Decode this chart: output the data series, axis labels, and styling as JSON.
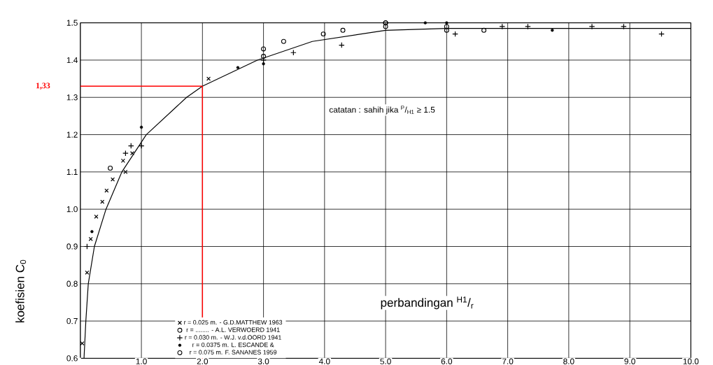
{
  "chart_data": {
    "type": "scatter",
    "xlabel": "perbandingan $^{H1}$/$_{r}$",
    "ylabel": "koefisien C$_{0}$",
    "xlim": [
      0,
      10
    ],
    "ylim": [
      0.6,
      1.5
    ],
    "xticks": [
      {
        "value": 0,
        "label": null
      },
      {
        "value": 1,
        "label": "1.0"
      },
      {
        "value": 2,
        "label": "2.0"
      },
      {
        "value": 3,
        "label": "3.0"
      },
      {
        "value": 4,
        "label": "4.0"
      },
      {
        "value": 5,
        "label": "5.0"
      },
      {
        "value": 6,
        "label": "6.0"
      },
      {
        "value": 7,
        "label": "7.0"
      },
      {
        "value": 8,
        "label": "8.0"
      },
      {
        "value": 9,
        "label": "9.0"
      },
      {
        "value": 10,
        "label": "10.0"
      }
    ],
    "yticks": [
      0.6,
      0.7,
      0.8,
      0.9,
      {
        "value": 1,
        "label": "1.0"
      },
      1.1,
      1.2,
      1.3,
      1.4,
      1.5
    ],
    "grid": true,
    "legend": "bottom",
    "series": [
      {
        "name": "r = 0.025 m. - G.D.MATTHEW 1963",
        "color": "#000000",
        "marker": "cross",
        "x": [
          0.03,
          0.11,
          0.17,
          0.26,
          0.36,
          0.43,
          0.53,
          0.7,
          0.74,
          0.85,
          2.1
        ],
        "values": [
          0.64,
          0.83,
          0.92,
          0.98,
          1.02,
          1.05,
          1.08,
          1.13,
          1.1,
          1.15,
          1.35
        ]
      },
      {
        "name": "r = ........ - A.L. VERWOERD 1941",
        "color": "#000000",
        "marker": "circle",
        "x": [
          0.49,
          3.0,
          3.0,
          3.33,
          3.98,
          4.3,
          5.0,
          5.0,
          6.61
        ],
        "values": [
          1.11,
          1.43,
          1.41,
          1.45,
          1.47,
          1.48,
          1.5,
          1.5,
          1.48
        ]
      },
      {
        "name": "r = 0.030 m. - W.J. v.d.OORD 1941",
        "color": "#000000",
        "marker": "plus",
        "x": [
          0.11,
          0.74,
          0.83,
          1.0,
          3.0,
          3.49,
          4.28,
          6.14,
          6.91,
          7.33,
          8.38,
          8.9,
          9.52
        ],
        "values": [
          0.9,
          1.15,
          1.17,
          1.17,
          1.4,
          1.42,
          1.44,
          1.47,
          1.49,
          1.49,
          1.49,
          1.49,
          1.47
        ]
      },
      {
        "name": "r = 0.0375 m. L. ESCANDE &",
        "color": "#000000",
        "marker": "dot",
        "x": [
          0.19,
          1.0,
          2.58,
          3.0,
          5.65,
          6.0,
          7.73
        ],
        "values": [
          0.94,
          1.22,
          1.38,
          1.39,
          1.5,
          1.5,
          1.48
        ]
      },
      {
        "name": "r = 0.075 m. F. SANANES 1959",
        "color": "#000000",
        "marker": "circle",
        "x": [
          5.0,
          6.0,
          6.0
        ],
        "values": [
          1.49,
          1.49,
          1.48
        ]
      },
      {
        "type": "line",
        "color": "#000000",
        "marker": "none",
        "x": [
          0.06,
          0.09,
          0.13,
          0.23,
          0.42,
          0.68,
          1.08,
          1.74,
          2.0,
          2.9,
          3.8,
          5.0,
          6.0,
          10.0
        ],
        "values": [
          0.6,
          0.7,
          0.8,
          0.9,
          1.0,
          1.1,
          1.2,
          1.3,
          1.33,
          1.4,
          1.45,
          1.48,
          1.485,
          1.485
        ]
      }
    ],
    "ref_lines": [
      {
        "axis": "y",
        "value": 1.33,
        "label": "1,33",
        "color": "#ff0000"
      },
      {
        "axis": "x",
        "value": 2.0,
        "color": "#ff0000"
      }
    ],
    "annotations": [
      "catatan : sahih jika $^{P}$/$_{H1}$ ≥ 1.5"
    ]
  }
}
